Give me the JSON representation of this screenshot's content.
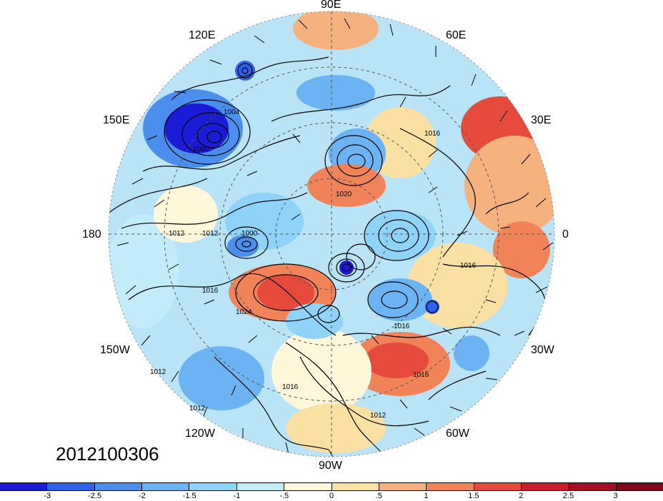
{
  "map": {
    "longitude_labels": {
      "lon_90e": "90E",
      "lon_60e": "60E",
      "lon_30e": "30E",
      "lon_0": "0",
      "lon_30w": "30W",
      "lon_60w": "60W",
      "lon_90w": "90W",
      "lon_120w": "120W",
      "lon_150w": "150W",
      "lon_180": "180",
      "lon_150e": "150E",
      "lon_120e": "120E"
    },
    "isobar_labels": [
      "1004",
      "1000",
      "1012",
      "1012",
      "1000",
      "1016",
      "1024",
      "1020",
      "1016",
      "1016",
      "1016",
      "1016",
      "1012",
      "1012",
      "1012",
      "1016"
    ],
    "timestamp": "2012100306"
  },
  "colorbar": {
    "colors": [
      "#1c1cd6",
      "#2f62e8",
      "#4a8fee",
      "#6cb3f4",
      "#8fd3f8",
      "#c2ecfa",
      "#fff7d9",
      "#fbe0a3",
      "#f6b27e",
      "#f08458",
      "#e54a3c",
      "#cc1f2a",
      "#a50f22",
      "#7d0a1a"
    ],
    "tick_labels": [
      "-3",
      "-2.5",
      "-2",
      "-1.5",
      "-1",
      "-.5",
      "0",
      ".5",
      "1",
      "1.5",
      "2",
      "2.5",
      "3"
    ]
  }
}
